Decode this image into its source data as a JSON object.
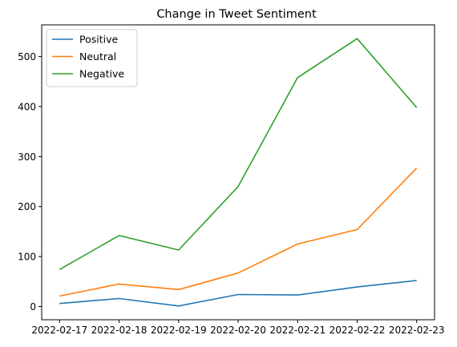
{
  "chart_data": {
    "type": "line",
    "title": "Change in Tweet Sentiment",
    "xlabel": "",
    "ylabel": "",
    "x": [
      "2022-02-17",
      "2022-02-18",
      "2022-02-19",
      "2022-02-20",
      "2022-02-21",
      "2022-02-22",
      "2022-02-23"
    ],
    "series": [
      {
        "name": "Positive",
        "color": "#1f77b4",
        "values": [
          6,
          16,
          1,
          24,
          23,
          39,
          52
        ]
      },
      {
        "name": "Neutral",
        "color": "#ff7f0e",
        "values": [
          21,
          45,
          34,
          67,
          125,
          154,
          277
        ]
      },
      {
        "name": "Negative",
        "color": "#2ca02c",
        "values": [
          74,
          142,
          113,
          240,
          458,
          536,
          398
        ]
      }
    ],
    "yticks": [
      0,
      100,
      200,
      300,
      400,
      500
    ],
    "ylim": [
      -26.5,
      563.5
    ],
    "legend_position": "upper-left",
    "grid": false
  }
}
